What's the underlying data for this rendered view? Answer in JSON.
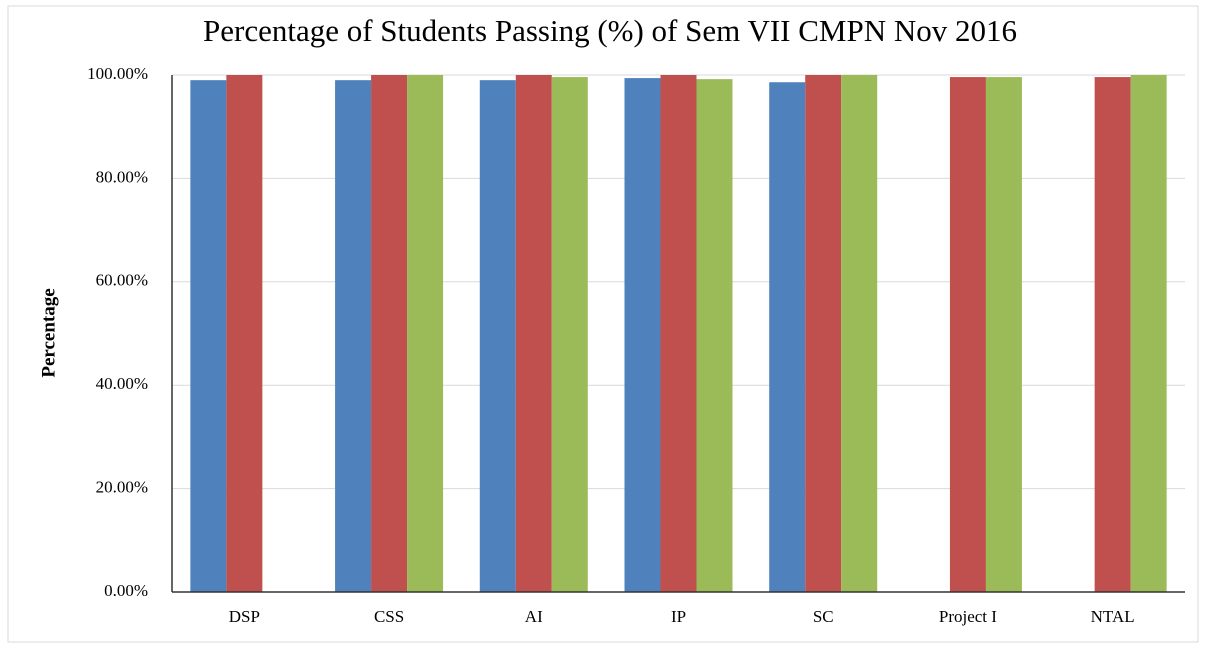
{
  "chart_data": {
    "type": "bar",
    "title": "Percentage of Students Passing (%) of Sem VII CMPN Nov 2016",
    "y_label": "Percentage",
    "categories": [
      "DSP",
      "CSS",
      "AI",
      "IP",
      "SC",
      "Project I",
      "NTAL"
    ],
    "series": [
      {
        "color": "#4f81bd",
        "values": [
          99.0,
          99.0,
          99.0,
          99.4,
          98.6,
          null,
          null
        ]
      },
      {
        "color": "#c0504d",
        "values": [
          100,
          100,
          100,
          100,
          100,
          99.6,
          99.6
        ]
      },
      {
        "color": "#9bbb59",
        "values": [
          null,
          100,
          99.6,
          99.2,
          100,
          99.6,
          100
        ]
      }
    ],
    "ylim": [
      0,
      100
    ],
    "yticks": [
      {
        "value": 0,
        "label": "0.00%"
      },
      {
        "value": 20,
        "label": "20.00%"
      },
      {
        "value": 40,
        "label": "40.00%"
      },
      {
        "value": 60,
        "label": "60.00%"
      },
      {
        "value": 80,
        "label": "80.00%"
      },
      {
        "value": 100,
        "label": "100.00%"
      }
    ],
    "grid": true
  }
}
